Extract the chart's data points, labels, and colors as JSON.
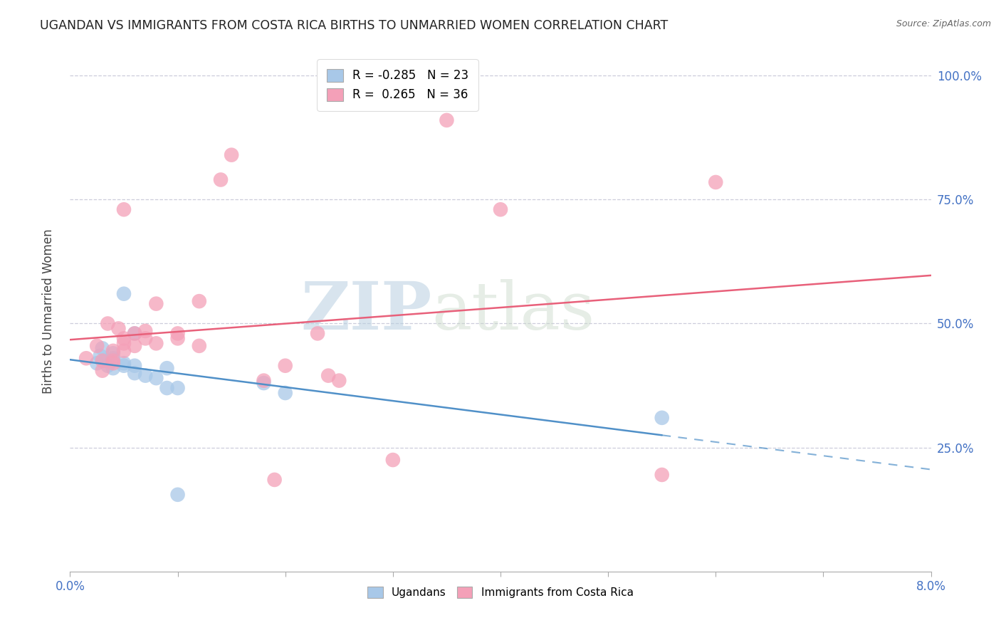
{
  "title": "UGANDAN VS IMMIGRANTS FROM COSTA RICA BIRTHS TO UNMARRIED WOMEN CORRELATION CHART",
  "source": "Source: ZipAtlas.com",
  "ylabel": "Births to Unmarried Women",
  "right_yticks": [
    0.25,
    0.5,
    0.75,
    1.0
  ],
  "right_yticklabels": [
    "25.0%",
    "50.0%",
    "75.0%",
    "100.0%"
  ],
  "legend_blue_r": "-0.285",
  "legend_blue_n": "23",
  "legend_pink_r": "0.265",
  "legend_pink_n": "36",
  "watermark_zip": "ZIP",
  "watermark_atlas": "atlas",
  "blue_color": "#a8c8e8",
  "pink_color": "#f4a0b8",
  "blue_line_color": "#5090c8",
  "pink_line_color": "#e8607a",
  "blue_scatter": [
    [
      0.0025,
      0.42
    ],
    [
      0.0028,
      0.435
    ],
    [
      0.003,
      0.45
    ],
    [
      0.0032,
      0.425
    ],
    [
      0.0035,
      0.415
    ],
    [
      0.004,
      0.41
    ],
    [
      0.004,
      0.43
    ],
    [
      0.004,
      0.44
    ],
    [
      0.005,
      0.56
    ],
    [
      0.005,
      0.415
    ],
    [
      0.005,
      0.42
    ],
    [
      0.006,
      0.48
    ],
    [
      0.006,
      0.415
    ],
    [
      0.006,
      0.4
    ],
    [
      0.007,
      0.395
    ],
    [
      0.008,
      0.39
    ],
    [
      0.009,
      0.41
    ],
    [
      0.009,
      0.37
    ],
    [
      0.01,
      0.37
    ],
    [
      0.01,
      0.155
    ],
    [
      0.018,
      0.38
    ],
    [
      0.02,
      0.36
    ],
    [
      0.055,
      0.31
    ]
  ],
  "pink_scatter": [
    [
      0.0015,
      0.43
    ],
    [
      0.0025,
      0.455
    ],
    [
      0.003,
      0.425
    ],
    [
      0.003,
      0.405
    ],
    [
      0.0035,
      0.5
    ],
    [
      0.004,
      0.445
    ],
    [
      0.004,
      0.425
    ],
    [
      0.004,
      0.42
    ],
    [
      0.0045,
      0.49
    ],
    [
      0.005,
      0.47
    ],
    [
      0.005,
      0.46
    ],
    [
      0.005,
      0.445
    ],
    [
      0.005,
      0.73
    ],
    [
      0.006,
      0.48
    ],
    [
      0.006,
      0.455
    ],
    [
      0.007,
      0.485
    ],
    [
      0.007,
      0.47
    ],
    [
      0.008,
      0.54
    ],
    [
      0.008,
      0.46
    ],
    [
      0.01,
      0.48
    ],
    [
      0.01,
      0.47
    ],
    [
      0.012,
      0.455
    ],
    [
      0.012,
      0.545
    ],
    [
      0.014,
      0.79
    ],
    [
      0.015,
      0.84
    ],
    [
      0.018,
      0.385
    ],
    [
      0.019,
      0.185
    ],
    [
      0.02,
      0.415
    ],
    [
      0.023,
      0.48
    ],
    [
      0.024,
      0.395
    ],
    [
      0.025,
      0.385
    ],
    [
      0.03,
      0.225
    ],
    [
      0.035,
      0.91
    ],
    [
      0.04,
      0.73
    ],
    [
      0.055,
      0.195
    ],
    [
      0.06,
      0.785
    ]
  ],
  "xmin": 0.0,
  "xmax": 0.08,
  "ymin": 0.0,
  "ymax": 1.05,
  "background_color": "#ffffff",
  "grid_color": "#c8c8d8"
}
